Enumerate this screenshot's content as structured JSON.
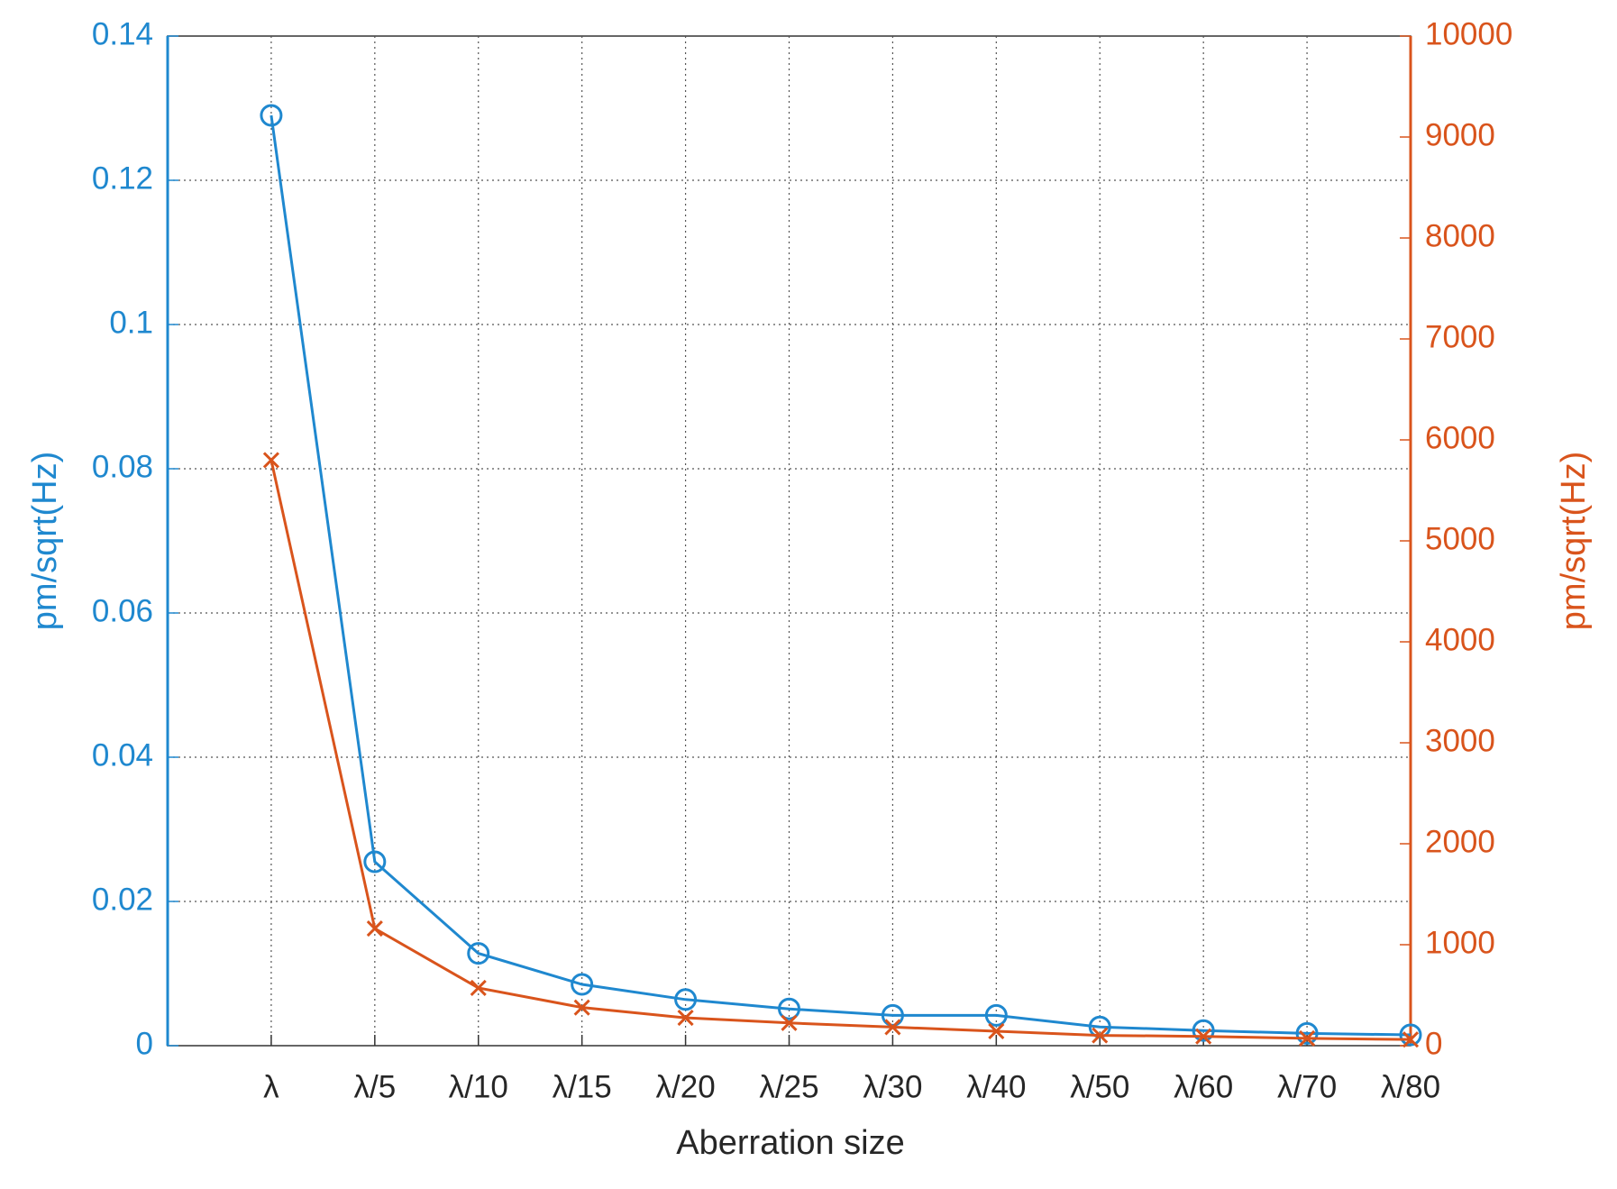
{
  "chart_data": {
    "type": "line",
    "xlabel": "Aberration size",
    "ylabel": "pm/sqrt(Hz)",
    "y2label": "pm/sqrt(Hz)",
    "categories": [
      "λ",
      "λ/5",
      "λ/10",
      "λ/15",
      "λ/20",
      "λ/25",
      "λ/30",
      "λ/40",
      "λ/50",
      "λ/60",
      "λ/70",
      "λ/80"
    ],
    "series": [
      {
        "color": "#1f88cf",
        "marker": "circle",
        "axis": "y",
        "values": [
          0.129,
          0.0255,
          0.0128,
          0.0085,
          0.0064,
          0.0051,
          0.0042,
          0.0042,
          0.0026,
          0.0021,
          0.0017,
          0.0015
        ]
      },
      {
        "color": "#d9541c",
        "marker": "x",
        "axis": "y2",
        "values": [
          5800,
          1160,
          572,
          378,
          276,
          225,
          184,
          143,
          102,
          92,
          72,
          61
        ]
      }
    ],
    "ylim": [
      0,
      0.14
    ],
    "yticks": [
      0,
      0.02,
      0.04,
      0.06,
      0.08,
      0.1,
      0.12,
      0.14
    ],
    "y2lim": [
      0,
      10000
    ],
    "y2ticks": [
      0,
      1000,
      2000,
      3000,
      4000,
      5000,
      6000,
      7000,
      8000,
      9000,
      10000
    ],
    "grid": true
  }
}
